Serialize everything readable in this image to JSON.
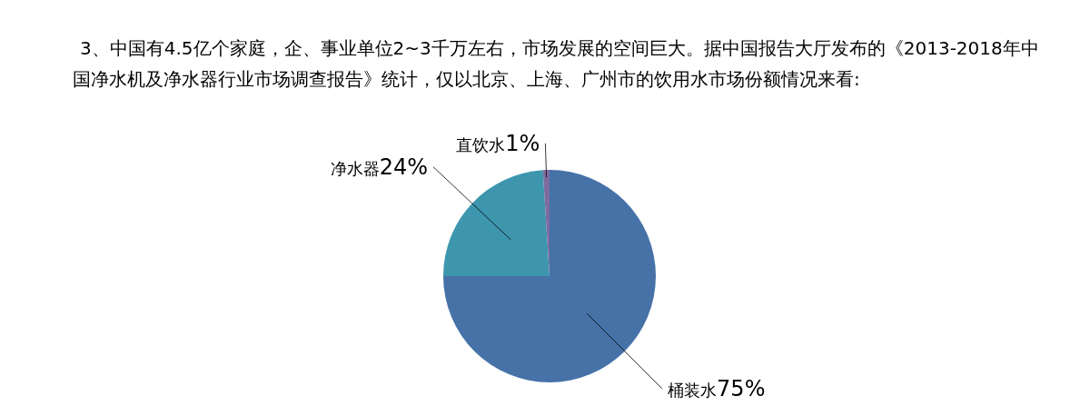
{
  "chart_data": {
    "type": "pie",
    "title": "3、中国有4.5亿个家庭，企、事业单位2~3千万左右，市场发展的空间巨大。据中国报告大厅发布的《2013-2018年中国净水机及净水器行业市场调查报告》统计，仅以北京、上海、广州市的饮用水市场份额情况来看:",
    "categories": [
      "桶装水",
      "净水器",
      "直饮水"
    ],
    "values": [
      75,
      24,
      1
    ],
    "value_labels": [
      "75%",
      "24%",
      "1%"
    ],
    "colors": [
      "#4672a8",
      "#3d96ae",
      "#7e6ba0"
    ]
  }
}
